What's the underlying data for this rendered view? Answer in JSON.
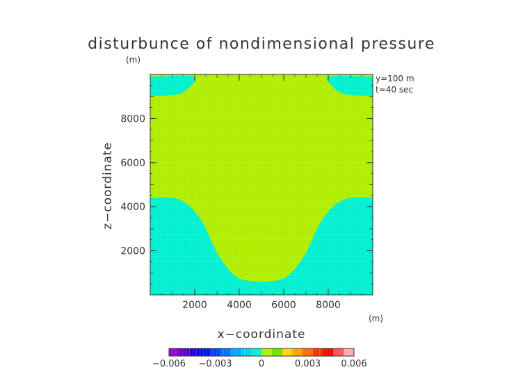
{
  "chart_data": {
    "type": "heatmap",
    "title": "disturbunce of nondimensional pressure",
    "unit": "(m)",
    "xlabel": "x−coordinate",
    "ylabel": "z−coordinate",
    "xunit": "(m)",
    "annotations": [
      "y=100 m",
      "t=40 sec"
    ],
    "xlim": [
      0,
      10000
    ],
    "ylim": [
      0,
      10000
    ],
    "xticks": [
      2000,
      4000,
      6000,
      8000
    ],
    "yticks": [
      2000,
      4000,
      6000,
      8000
    ],
    "xtick_labels": [
      "2000",
      "4000",
      "6000",
      "8000"
    ],
    "ytick_labels": [
      "2000",
      "4000",
      "6000",
      "8000"
    ],
    "grid": true,
    "regions": [
      {
        "level": "0 to 0.001",
        "color": "#b0ee00",
        "description": "central bulb and upper region"
      },
      {
        "level": "-0.001 to 0",
        "color": "#00f0d0",
        "description": "lower flanks and top corners"
      }
    ],
    "boundary_lower": [
      [
        0,
        4400
      ],
      [
        600,
        4420
      ],
      [
        1200,
        4350
      ],
      [
        1800,
        4000
      ],
      [
        2400,
        3200
      ],
      [
        2900,
        2100
      ],
      [
        3400,
        1300
      ],
      [
        3900,
        800
      ],
      [
        4400,
        640
      ],
      [
        5000,
        600
      ],
      [
        5600,
        640
      ],
      [
        6100,
        800
      ],
      [
        6600,
        1300
      ],
      [
        7100,
        2100
      ],
      [
        7600,
        3200
      ],
      [
        8200,
        4000
      ],
      [
        8800,
        4350
      ],
      [
        9400,
        4420
      ],
      [
        10000,
        4400
      ]
    ],
    "corner_left": [
      [
        0,
        9900
      ],
      [
        1950,
        9900
      ],
      [
        1800,
        9450
      ],
      [
        1400,
        9150
      ],
      [
        800,
        9050
      ],
      [
        0,
        9030
      ]
    ],
    "corner_right": [
      [
        10000,
        9900
      ],
      [
        8050,
        9900
      ],
      [
        8200,
        9450
      ],
      [
        8600,
        9150
      ],
      [
        9200,
        9050
      ],
      [
        10000,
        9030
      ]
    ],
    "colorbar": {
      "tick_values": [
        -0.006,
        -0.003,
        0,
        0.003,
        0.006
      ],
      "tick_labels": [
        "−0.006",
        "−0.003",
        "0",
        "0.003",
        "0.006"
      ],
      "colors": [
        "#9900cc",
        "#5a00cc",
        "#1f00dd",
        "#0010f0",
        "#0040f8",
        "#0070ff",
        "#00a8ff",
        "#00d0ee",
        "#00f0d0",
        "#b0ee00",
        "#70e000",
        "#ffd200",
        "#ffa000",
        "#ff6a00",
        "#ff3000",
        "#ff0000",
        "#ff5050",
        "#ffaaaa"
      ]
    }
  }
}
